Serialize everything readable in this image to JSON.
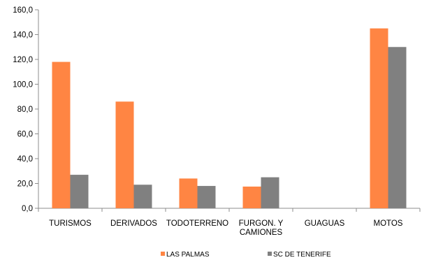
{
  "chart_data": {
    "type": "bar",
    "categories": [
      [
        "TURISMOS"
      ],
      [
        "DERIVADOS"
      ],
      [
        "TODOTERRENO"
      ],
      [
        "FURGON. Y",
        "CAMIONES"
      ],
      [
        "GUAGUAS"
      ],
      [
        "MOTOS"
      ]
    ],
    "series": [
      {
        "name": "LAS PALMAS",
        "color": "#ff8543",
        "values": [
          118,
          86,
          24,
          17.5,
          0,
          145
        ]
      },
      {
        "name": "SC DE TENERIFE",
        "color": "#808080",
        "values": [
          27,
          19,
          18,
          25,
          0,
          130
        ]
      }
    ],
    "ylim": [
      0,
      160
    ],
    "yticks": [
      "0,0",
      "20,0",
      "40,0",
      "60,0",
      "80,0",
      "100,0",
      "120,0",
      "140,0",
      "160,0"
    ],
    "grid": false,
    "legend_position": "bottom"
  }
}
